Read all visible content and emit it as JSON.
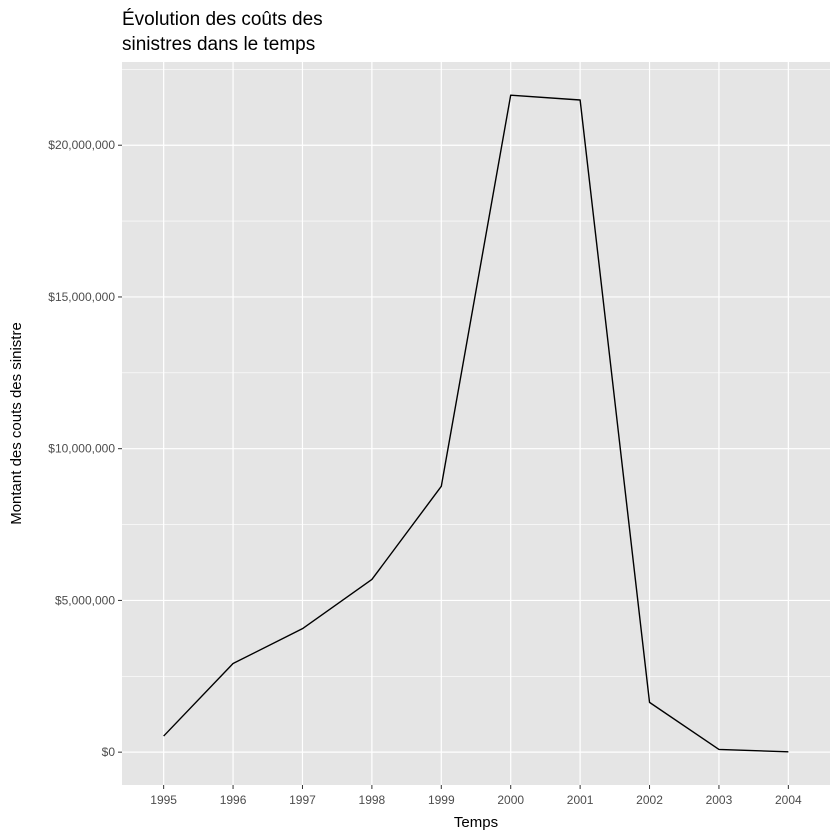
{
  "chart_data": {
    "type": "line",
    "title_lines": [
      "Évolution des coûts des",
      "sinistres dans le temps"
    ],
    "xlabel": "Temps",
    "ylabel": "Montant des couts des sinistre",
    "x": [
      1995,
      1996,
      1997,
      1998,
      1999,
      2000,
      2001,
      2002,
      2003,
      2004
    ],
    "x_tick_labels": [
      "1995",
      "1996",
      "1997",
      "1998",
      "1999",
      "2000",
      "2001",
      "2002",
      "2003",
      "2004"
    ],
    "series": [
      {
        "values": [
          530000,
          2920000,
          4070000,
          5690000,
          8760000,
          21650000,
          21490000,
          1640000,
          90000,
          10000
        ]
      }
    ],
    "y_ticks": [
      0,
      5000000,
      10000000,
      15000000,
      20000000
    ],
    "y_tick_labels": [
      "$0",
      "$5,000,000",
      "$10,000,000",
      "$15,000,000",
      "$20,000,000"
    ],
    "xlim": [
      1994.4,
      2004.6
    ],
    "ylim": [
      -1082500,
      22742500
    ],
    "grid": true,
    "legend": "none",
    "colors": {
      "panel_background": "#E5E5E5",
      "grid_major": "#FFFFFF",
      "line": "#000000",
      "tick_text": "#4D4D4D",
      "title_text": "#000000"
    }
  }
}
